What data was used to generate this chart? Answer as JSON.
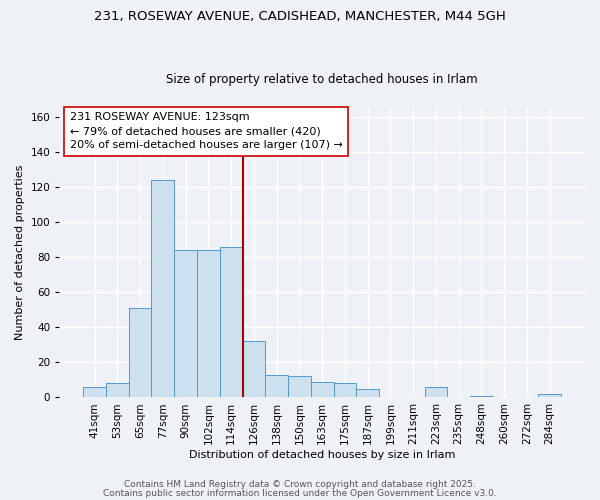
{
  "title_line1": "231, ROSEWAY AVENUE, CADISHEAD, MANCHESTER, M44 5GH",
  "title_line2": "Size of property relative to detached houses in Irlam",
  "xlabel": "Distribution of detached houses by size in Irlam",
  "ylabel": "Number of detached properties",
  "bar_labels": [
    "41sqm",
    "53sqm",
    "65sqm",
    "77sqm",
    "90sqm",
    "102sqm",
    "114sqm",
    "126sqm",
    "138sqm",
    "150sqm",
    "163sqm",
    "175sqm",
    "187sqm",
    "199sqm",
    "211sqm",
    "223sqm",
    "235sqm",
    "248sqm",
    "260sqm",
    "272sqm",
    "284sqm"
  ],
  "bar_heights": [
    6,
    8,
    51,
    124,
    84,
    84,
    86,
    32,
    13,
    12,
    9,
    8,
    5,
    0,
    0,
    6,
    0,
    1,
    0,
    0,
    2
  ],
  "bar_color": "#cce0f0",
  "bar_edge_color": "#5599cc",
  "vline_color": "#aa0000",
  "annotation_title": "231 ROSEWAY AVENUE: 123sqm",
  "annotation_line2": "← 79% of detached houses are smaller (420)",
  "annotation_line3": "20% of semi-detached houses are larger (107) →",
  "ylim": [
    0,
    165
  ],
  "yticks": [
    0,
    20,
    40,
    60,
    80,
    100,
    120,
    140,
    160
  ],
  "footer_line1": "Contains HM Land Registry data © Crown copyright and database right 2025.",
  "footer_line2": "Contains public sector information licensed under the Open Government Licence v3.0.",
  "background_color": "#eef2f7",
  "grid_color": "#ffffff",
  "title_fontsize": 9.5,
  "subtitle_fontsize": 8.5,
  "axis_label_fontsize": 8,
  "tick_fontsize": 7.5,
  "annotation_fontsize": 8,
  "footer_fontsize": 6.5
}
